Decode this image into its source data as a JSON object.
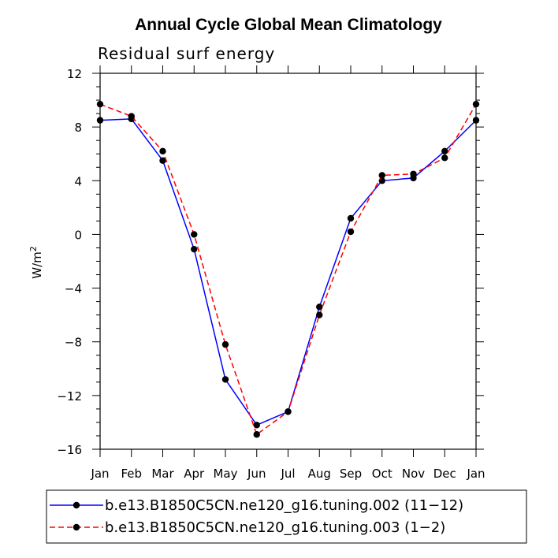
{
  "chart_data": {
    "type": "line",
    "title": "Annual Cycle Global Mean Climatology",
    "subtitle": "Residual surf energy",
    "ylabel": "W/m",
    "ylabel_sup": "2",
    "xlabel": "",
    "categories": [
      "Jan",
      "Feb",
      "Mar",
      "Apr",
      "May",
      "Jun",
      "Jul",
      "Aug",
      "Sep",
      "Oct",
      "Nov",
      "Dec",
      "Jan"
    ],
    "ylim": [
      -16,
      12
    ],
    "yticks": [
      -16,
      -12,
      -8,
      -4,
      0,
      4,
      8,
      12
    ],
    "ytick_labels": [
      "−16",
      "−12",
      "−8",
      "−4",
      "0",
      "4",
      "8",
      "12"
    ],
    "grid": false,
    "legend_position": "bottom",
    "series": [
      {
        "name": "b.e13.B1850C5CN.ne120_g16.tuning.002 (11−12)",
        "color": "#0000ff",
        "dash": "solid",
        "marker": "circle",
        "values": [
          8.5,
          8.6,
          5.5,
          -1.1,
          -10.8,
          -14.2,
          -13.2,
          -5.4,
          1.2,
          4.0,
          4.2,
          6.2,
          8.5
        ]
      },
      {
        "name": "b.e13.B1850C5CN.ne120_g16.tuning.003 (1−2)",
        "color": "#ff0000",
        "dash": "dashed",
        "marker": "circle",
        "values": [
          9.7,
          8.8,
          6.2,
          0.0,
          -8.2,
          -14.9,
          -13.2,
          -6.0,
          0.2,
          4.4,
          4.5,
          5.7,
          9.7
        ]
      }
    ]
  }
}
